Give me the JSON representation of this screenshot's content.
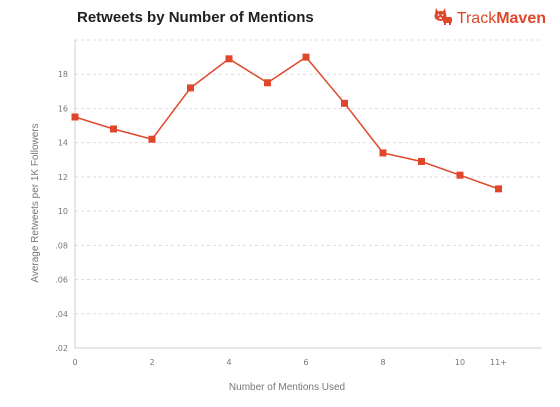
{
  "header": {
    "title": "Retweets by Number of Mentions"
  },
  "logo": {
    "icon": "corgi-dog-icon",
    "text_light": "Track",
    "text_bold": "Maven",
    "color": "#e0462a"
  },
  "chart_data": {
    "type": "line",
    "title": "Retweets by Number of Mentions",
    "xlabel": "Number of Mentions Used",
    "ylabel": "Average Retweets per 1K Followers",
    "x_tick_labels": [
      "0",
      "2",
      "4",
      "6",
      "8",
      "10",
      "11+"
    ],
    "y_tick_labels": [
      ".02",
      ".04",
      ".06",
      ".08",
      "10",
      "12",
      "14",
      "16",
      "18"
    ],
    "ylim": [
      0.02,
      0.2
    ],
    "grid": true,
    "line_color": "#e0462a",
    "series": [
      {
        "x": [
          "0",
          "1",
          "2",
          "3",
          "4",
          "5",
          "6",
          "7",
          "8",
          "9",
          "10",
          "11+"
        ],
        "values": [
          0.155,
          0.148,
          0.142,
          0.172,
          0.189,
          0.175,
          0.19,
          0.163,
          0.134,
          0.129,
          0.121,
          0.113
        ]
      }
    ]
  }
}
